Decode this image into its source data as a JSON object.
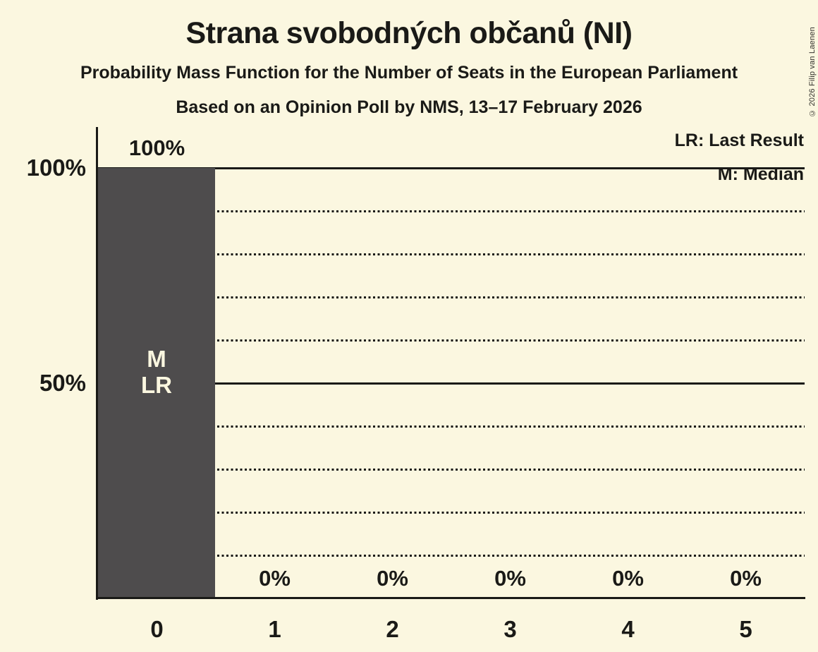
{
  "header": {
    "title": "Strana svobodných občanů (NI)",
    "subtitle": "Probability Mass Function for the Number of Seats in the European Parliament",
    "poll_line": "Based on an Opinion Poll by NMS, 13–17 February 2026"
  },
  "legend": {
    "last_result": "LR: Last Result",
    "median": "M: Median"
  },
  "copyright": "© 2026 Filip van Laenen",
  "colors": {
    "background": "#FBF7E0",
    "bar": "#4E4C4D",
    "text": "#1a1a17",
    "bar_label_text": "#FBF7E0"
  },
  "chart_data": {
    "type": "bar",
    "title": "Strana svobodných občanů (NI)",
    "categories": [
      "0",
      "1",
      "2",
      "3",
      "4",
      "5"
    ],
    "values": [
      100,
      0,
      0,
      0,
      0,
      0
    ],
    "value_labels": [
      "100%",
      "0%",
      "0%",
      "0%",
      "0%",
      "0%"
    ],
    "bar_annotations": [
      [
        "M",
        "LR"
      ],
      [],
      [],
      [],
      [],
      []
    ],
    "xlabel": "",
    "ylabel": "",
    "ylim": [
      0,
      100
    ],
    "yticks": [
      100,
      50
    ],
    "ytick_labels": [
      "100%",
      "50%"
    ],
    "solid_gridlines": [
      100,
      50
    ],
    "dotted_gridlines": [
      90,
      80,
      70,
      60,
      40,
      30,
      20,
      10
    ],
    "grid": "on",
    "legend_position": "top-right",
    "median_seat": "0",
    "last_result_seat": "0"
  }
}
